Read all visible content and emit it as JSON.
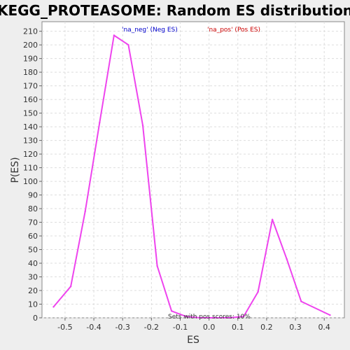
{
  "chart_data": {
    "type": "line",
    "title": "KEGG_PROTEASOME: Random ES distribution",
    "xlabel": "ES",
    "ylabel": "P(ES)",
    "xlim": [
      -0.58,
      0.47
    ],
    "ylim": [
      0,
      217
    ],
    "x_ticks": [
      -0.5,
      -0.4,
      -0.3,
      -0.2,
      -0.1,
      0.0,
      0.1,
      0.2,
      0.3,
      0.4
    ],
    "x_tick_labels": [
      "-0.5",
      "-0.4",
      "-0.3",
      "-0.2",
      "-0.1",
      "0.0",
      "0.1",
      "0.2",
      "0.3",
      "0.4"
    ],
    "y_ticks": [
      0,
      10,
      20,
      30,
      40,
      50,
      60,
      70,
      80,
      90,
      100,
      110,
      120,
      130,
      140,
      150,
      160,
      170,
      180,
      190,
      200,
      210
    ],
    "y_tick_labels": [
      "0",
      "10",
      "20",
      "30",
      "40",
      "50",
      "60",
      "70",
      "80",
      "90",
      "100",
      "110",
      "120",
      "130",
      "140",
      "150",
      "160",
      "170",
      "180",
      "190",
      "200",
      "210"
    ],
    "grid": true,
    "legend": [
      {
        "label": "'na_neg' (Neg ES)",
        "color": "#0000cc"
      },
      {
        "label": "'na_pos' (Pos ES)",
        "color": "#cc0000"
      }
    ],
    "annotation": "Sets with pos scores: 10%",
    "series": [
      {
        "color": "#ee44ee",
        "x": [
          -0.54,
          -0.48,
          -0.43,
          -0.38,
          -0.33,
          -0.28,
          -0.23,
          -0.18,
          -0.13,
          -0.08,
          -0.03,
          0.02,
          0.07,
          0.12,
          0.17,
          0.22,
          0.27,
          0.32,
          0.42
        ],
        "y": [
          8,
          23,
          78,
          143,
          207,
          200,
          141,
          38,
          5,
          1,
          0,
          0,
          0,
          1,
          19,
          72,
          43,
          12,
          2
        ]
      }
    ]
  }
}
